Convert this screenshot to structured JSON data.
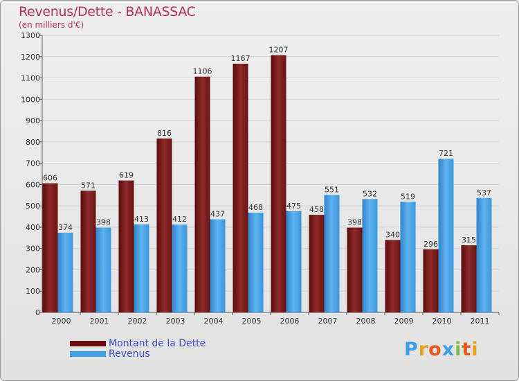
{
  "chart_data": {
    "type": "bar",
    "title": "Revenus/Dette - BANASSAC",
    "subtitle": "(en milliers d'€)",
    "categories": [
      "2000",
      "2001",
      "2002",
      "2003",
      "2004",
      "2005",
      "2006",
      "2007",
      "2008",
      "2009",
      "2010",
      "2011"
    ],
    "series": [
      {
        "name": "Montant de la Dette",
        "color": "#8b1a1a",
        "values": [
          606,
          571,
          619,
          816,
          1106,
          1167,
          1207,
          458,
          398,
          340,
          296,
          315
        ]
      },
      {
        "name": "Revenus",
        "color": "#3d9ee6",
        "values": [
          374,
          398,
          413,
          412,
          437,
          468,
          475,
          551,
          532,
          519,
          721,
          537
        ]
      }
    ],
    "yticks": [
      0,
      100,
      200,
      300,
      400,
      500,
      600,
      700,
      800,
      900,
      1000,
      1100,
      1200,
      1300
    ],
    "ylim": [
      0,
      1300
    ],
    "grid": true,
    "legend_position": "bottom-left",
    "xlabel": "",
    "ylabel": ""
  },
  "logo": {
    "letters": [
      "P",
      "r",
      "o",
      "x",
      "i",
      "t",
      "i"
    ],
    "colors": [
      "#3d9ee6",
      "#e8a21a",
      "#e8591a",
      "#3d9ee6",
      "#7ac143",
      "#e8591a",
      "#e8a21a"
    ]
  }
}
